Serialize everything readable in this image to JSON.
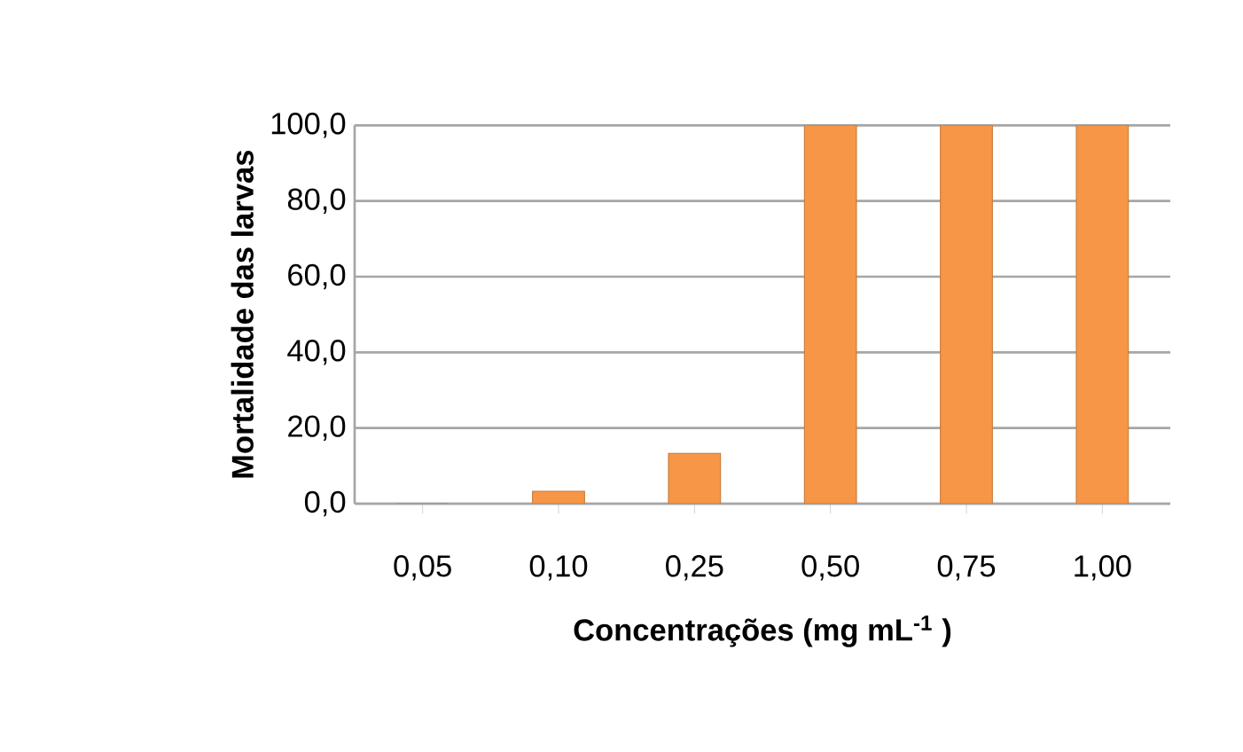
{
  "chart_data": {
    "type": "bar",
    "categories": [
      "0,05",
      "0,10",
      "0,25",
      "0,50",
      "0,75",
      "1,00"
    ],
    "values": [
      0,
      3.3,
      13.3,
      100,
      100,
      100
    ],
    "color": "#f79646",
    "xlabel": "Concentrações (mg mL$^{-1}$ )",
    "ylabel": "Mortalidade das larvas",
    "ylim": [
      0,
      100
    ],
    "yticks": [
      {
        "value": 0,
        "label": "0,0"
      },
      {
        "value": 20,
        "label": "20,0"
      },
      {
        "value": 40,
        "label": "40,0"
      },
      {
        "value": 60,
        "label": "60,0"
      },
      {
        "value": 80,
        "label": "80,0"
      },
      {
        "value": 100,
        "label": "100,0"
      }
    ],
    "grid": "y"
  }
}
